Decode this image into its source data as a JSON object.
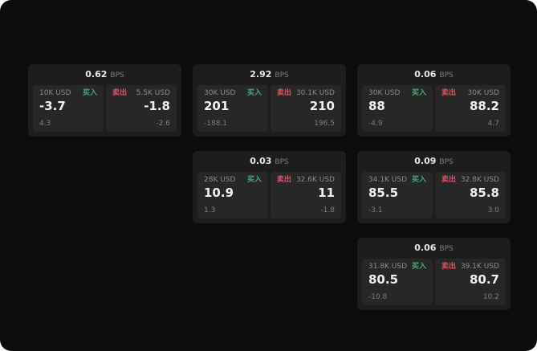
{
  "colors": {
    "background": "#0c0c0c",
    "card": "#1d1d1d",
    "panel": "#272727",
    "buy_green": "#3fae76",
    "sell_red": "#de5666",
    "text_primary": "#f0f0f0",
    "text_muted": "#8b8b8b"
  },
  "labels": {
    "bps_unit": "BPS",
    "buy": "买入",
    "sell": "卖出"
  },
  "cards": [
    {
      "bps": "0.62",
      "buy": {
        "size": "10K USD",
        "label": "买入",
        "price": "-3.7",
        "sub": "4.3"
      },
      "sell": {
        "size": "5.5K USD",
        "label": "卖出",
        "price": "-1.8",
        "sub": "-2.6"
      }
    },
    {
      "bps": "2.92",
      "buy": {
        "size": "30K USD",
        "label": "买入",
        "price": "201",
        "sub": "-188.1"
      },
      "sell": {
        "size": "30.1K USD",
        "label": "卖出",
        "price": "210",
        "sub": "196.5"
      }
    },
    {
      "bps": "0.06",
      "buy": {
        "size": "30K USD",
        "label": "买入",
        "price": "88",
        "sub": "-4.9"
      },
      "sell": {
        "size": "30K USD",
        "label": "卖出",
        "price": "88.2",
        "sub": "4.7"
      }
    },
    {
      "bps": "0.03",
      "buy": {
        "size": "28K USD",
        "label": "买入",
        "price": "10.9",
        "sub": "1.3"
      },
      "sell": {
        "size": "32.6K USD",
        "label": "卖出",
        "price": "11",
        "sub": "-1.8"
      }
    },
    {
      "bps": "0.09",
      "buy": {
        "size": "34.1K USD",
        "label": "买入",
        "price": "85.5",
        "sub": "-3.1"
      },
      "sell": {
        "size": "32.8K USD",
        "label": "卖出",
        "price": "85.8",
        "sub": "3.0"
      }
    },
    {
      "bps": "0.06",
      "buy": {
        "size": "31.8K USD",
        "label": "买入",
        "price": "80.5",
        "sub": "-10.8"
      },
      "sell": {
        "size": "39.1K USD",
        "label": "卖出",
        "price": "80.7",
        "sub": "10.2"
      }
    }
  ]
}
